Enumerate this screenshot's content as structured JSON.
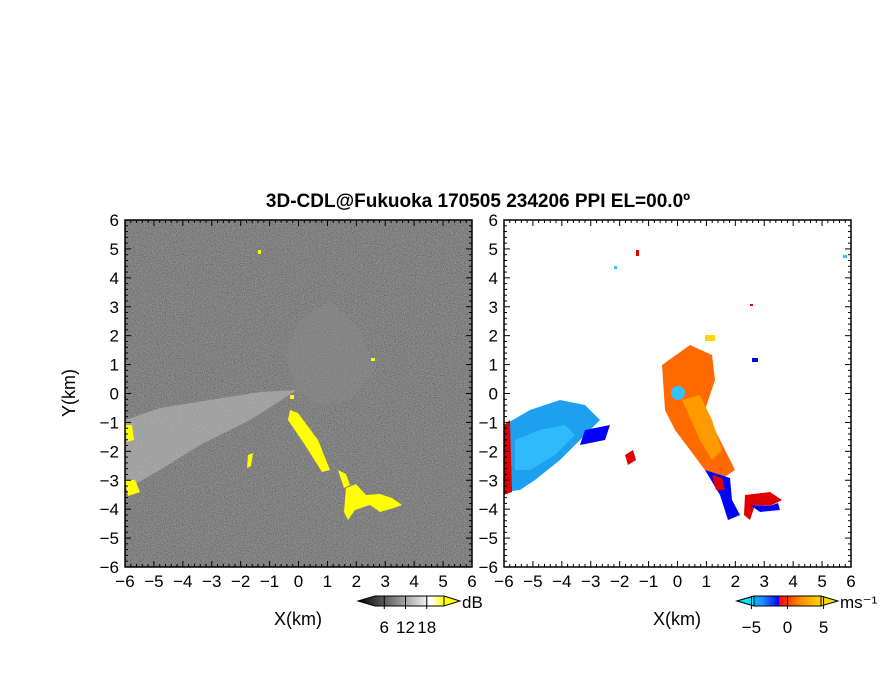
{
  "title": "3D-CDL@Fukuoka 170505 234206 PPI EL=00.0º",
  "chart_data": [
    {
      "type": "heatmap",
      "name": "reflectivity-panel",
      "xlabel": "X(km)",
      "ylabel": "Y(km)",
      "xlim": [
        -6,
        6
      ],
      "ylim": [
        -6,
        6
      ],
      "xticks": [
        "−6",
        "−5",
        "−4",
        "−3",
        "−2",
        "−1",
        "0",
        "1",
        "2",
        "3",
        "4",
        "5",
        "6"
      ],
      "yticks": [
        "−6",
        "−5",
        "−4",
        "−3",
        "−2",
        "−1",
        "0",
        "1",
        "2",
        "3",
        "4",
        "5",
        "6"
      ],
      "colorbar": {
        "unit": "dB",
        "ticks": [
          "6",
          "12",
          "18"
        ],
        "range": [
          0,
          24
        ],
        "colors": [
          "#000000",
          "#ffffff",
          "#ffff00"
        ]
      },
      "highlight_color": "#ffff00"
    },
    {
      "type": "heatmap",
      "name": "velocity-panel",
      "xlabel": "X(km)",
      "xlim": [
        -6,
        6
      ],
      "ylim": [
        -6,
        6
      ],
      "xticks": [
        "−6",
        "−5",
        "−4",
        "−3",
        "−2",
        "−1",
        "0",
        "1",
        "2",
        "3",
        "4",
        "5",
        "6"
      ],
      "yticks": [
        "−6",
        "−5",
        "−4",
        "−3",
        "−2",
        "−1",
        "0",
        "1",
        "2",
        "3",
        "4",
        "5",
        "6"
      ],
      "colorbar": {
        "unit": "ms⁻¹",
        "ticks": [
          "−5",
          "0",
          "5"
        ],
        "range": [
          -7,
          7
        ],
        "colors": [
          "#00e5ff",
          "#1e90ff",
          "#0000ff",
          "#ff0000",
          "#ff8c00",
          "#ffd700"
        ]
      }
    }
  ]
}
